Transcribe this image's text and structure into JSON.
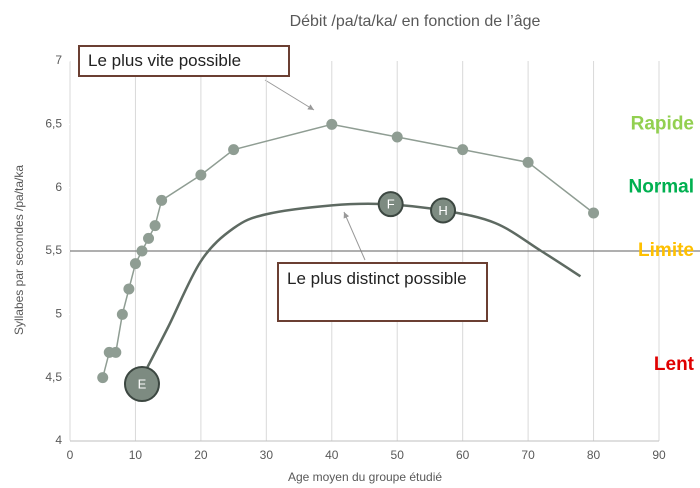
{
  "chart_data": {
    "type": "line",
    "title": "Débit /pa/ta/ka/ en fonction de l’âge",
    "x_label": "Age moyen du groupe étudié",
    "y_label": "Syllabes par secondes /pa/ta/ka",
    "xlim": [
      0,
      90
    ],
    "xticks": [
      0,
      10,
      20,
      30,
      40,
      50,
      60,
      70,
      80,
      90
    ],
    "ylim": [
      4,
      7
    ],
    "yticks": [
      4,
      {
        "value": 4.5,
        "label": "4,5"
      },
      5,
      {
        "value": 5.5,
        "label": "5,5"
      },
      6,
      {
        "value": 6.5,
        "label": "6,5"
      },
      7
    ],
    "grid": true,
    "reference_line": 5.5,
    "series": [
      {
        "color": "#8f9d93",
        "smooth": false,
        "markers": true,
        "x": [
          5,
          6,
          7,
          8,
          9,
          10,
          11,
          12,
          13,
          14,
          20,
          25,
          40,
          50,
          60,
          70,
          80
        ],
        "values": [
          4.5,
          4.7,
          4.7,
          5.0,
          5.2,
          5.4,
          5.5,
          5.6,
          5.7,
          5.9,
          6.1,
          6.3,
          6.5,
          6.4,
          6.3,
          6.2,
          5.8
        ]
      },
      {
        "color": "#5e6a62",
        "smooth": true,
        "markers": false,
        "x": [
          11,
          15,
          20,
          25,
          30,
          40,
          48,
          57,
          65,
          72,
          78
        ],
        "values": [
          4.5,
          4.9,
          5.42,
          5.68,
          5.79,
          5.86,
          5.87,
          5.82,
          5.72,
          5.5,
          5.3
        ]
      }
    ],
    "point_labels": [
      {
        "label": "E",
        "x": 11,
        "y": 4.45
      },
      {
        "label": "F",
        "x": 49,
        "y": 5.87
      },
      {
        "label": "H",
        "x": 57,
        "y": 5.82
      }
    ],
    "zones": [
      {
        "label": "Rapide",
        "color": "#92d050"
      },
      {
        "label": "Normal",
        "color": "#00b050"
      },
      {
        "label": "Limite",
        "color": "#ffc000"
      },
      {
        "label": "Lent",
        "color": "#e00000"
      }
    ],
    "annotations": [
      "Le plus vite possible",
      "Le plus distinct possible"
    ]
  }
}
